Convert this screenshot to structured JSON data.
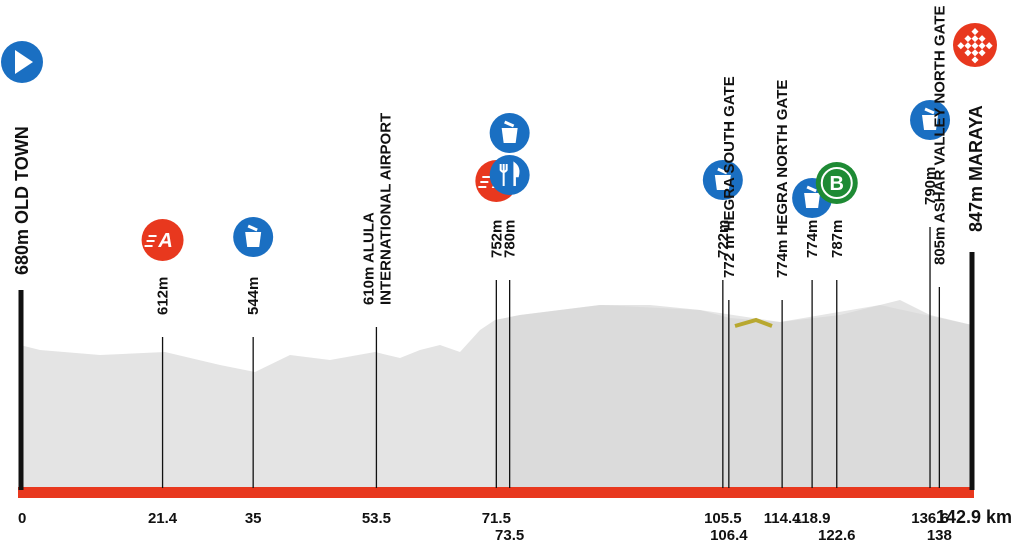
{
  "start": {
    "label": "680m OLD TOWN",
    "km": "0"
  },
  "finish": {
    "label": "847m MARAYA",
    "km": "142.9 km"
  },
  "points": [
    {
      "km": "21.4",
      "label": "612m",
      "badge": "A"
    },
    {
      "km": "35",
      "label": "544m"
    },
    {
      "km": "53.5",
      "label": "610m ALULA",
      "label2": "INTERNATIONAL AIRPORT"
    },
    {
      "km": "71.5",
      "label": "752m",
      "badge": "A"
    },
    {
      "km": "73.5",
      "label": "780m"
    },
    {
      "km": "105.5",
      "label": "722m"
    },
    {
      "km": "106.4",
      "label": "772 m HEGRA SOUTH GATE"
    },
    {
      "km": "114.4",
      "label": "774m HEGRA NORTH GATE"
    },
    {
      "km": "118.9",
      "label": "774m"
    },
    {
      "km": "122.6",
      "label": "787m",
      "badge": "B"
    },
    {
      "km": "136.6",
      "label": "790m"
    },
    {
      "km": "138",
      "label": "805m ASHAR VALLEY NORTH GATE"
    }
  ]
}
